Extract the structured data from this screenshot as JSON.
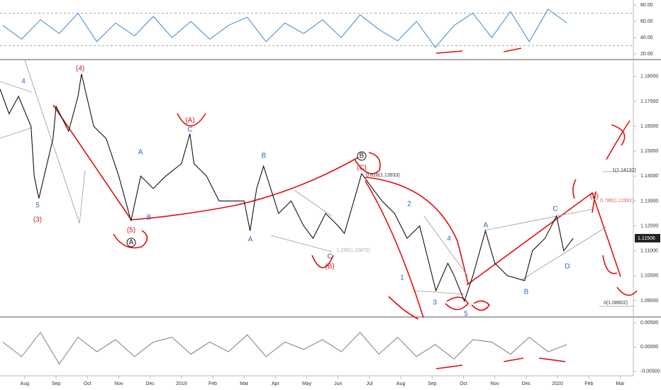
{
  "chart_data": [
    {
      "type": "line",
      "name": "RSI",
      "color": "#4a8fd6",
      "x": [
        -0.7,
        -0.1,
        0.5,
        1.1,
        1.7,
        2.3,
        2.9,
        3.5,
        4.1,
        4.7,
        5.3,
        5.9,
        6.5,
        7.1,
        7.7,
        8.3,
        8.9,
        9.5,
        10.1,
        10.7,
        11.3,
        11.9,
        12.5,
        13.1,
        13.7,
        14.3,
        14.9,
        15.5,
        16.1,
        16.7,
        17.3
      ],
      "values": [
        55,
        38,
        62,
        45,
        70,
        35,
        58,
        42,
        66,
        40,
        60,
        38,
        55,
        65,
        35,
        58,
        45,
        62,
        40,
        68,
        50,
        36,
        60,
        28,
        55,
        70,
        40,
        72,
        35,
        75,
        58
      ],
      "xlim": [
        -0.79,
        19.42
      ],
      "ylim": [
        13.9,
        86.2
      ],
      "yticks": [
        {
          "value": 80,
          "label": "80.00"
        },
        {
          "value": 60,
          "label": "60.00"
        },
        {
          "value": 40,
          "label": "40.00"
        },
        {
          "value": 20,
          "label": "20.00"
        }
      ],
      "levels": [
        70,
        30
      ]
    },
    {
      "type": "line",
      "name": "EURUSD",
      "color": "#111111",
      "x": [
        -0.79,
        -0.5,
        -0.2,
        0.2,
        0.3,
        0.45,
        0.9,
        1.0,
        1.4,
        1.7,
        1.81,
        2.2,
        2.6,
        3.0,
        3.39,
        3.7,
        4.1,
        4.5,
        5.0,
        5.27,
        5.4,
        5.8,
        6.2,
        6.6,
        7.0,
        7.19,
        7.4,
        7.62,
        8.1,
        8.5,
        8.9,
        9.2,
        9.6,
        10.0,
        10.2,
        10.5,
        10.75,
        11.1,
        11.4,
        11.8,
        12.2,
        12.6,
        13.12,
        13.5,
        13.7,
        14.03,
        14.3,
        14.7,
        15.0,
        15.4,
        15.95,
        16.2,
        16.6,
        16.97,
        17.2,
        17.5
      ],
      "values": [
        1.175,
        1.165,
        1.172,
        1.16,
        1.14,
        1.131,
        1.155,
        1.168,
        1.158,
        1.172,
        1.181,
        1.16,
        1.155,
        1.14,
        1.122,
        1.14,
        1.135,
        1.14,
        1.145,
        1.157,
        1.145,
        1.14,
        1.13,
        1.13,
        1.13,
        1.118,
        1.135,
        1.144,
        1.125,
        1.13,
        1.12,
        1.115,
        1.125,
        1.12,
        1.117,
        1.13,
        1.141,
        1.135,
        1.13,
        1.125,
        1.115,
        1.12,
        1.094,
        1.105,
        1.1,
        1.0898,
        1.1,
        1.118,
        1.105,
        1.1,
        1.098,
        1.11,
        1.115,
        1.124,
        1.11,
        1.115
      ],
      "xlim": [
        -0.79,
        19.42
      ],
      "ylim": [
        1.084,
        1.1865
      ],
      "yticks": [
        {
          "value": 1.18,
          "label": "1.18000"
        },
        {
          "value": 1.17,
          "label": "1.17000"
        },
        {
          "value": 1.16,
          "label": "1.16000"
        },
        {
          "value": 1.15,
          "label": "1.15000"
        },
        {
          "value": 1.14,
          "label": "1.14000"
        },
        {
          "value": 1.13,
          "label": "1.13000"
        },
        {
          "value": 1.12,
          "label": "1.12000"
        },
        {
          "value": 1.11,
          "label": "1.11000"
        },
        {
          "value": 1.1,
          "label": "1.10000"
        },
        {
          "value": 1.09,
          "label": "1.09000"
        }
      ],
      "last_price": 1.11506,
      "annotations": [
        {
          "text": "4",
          "color": "#2a66c8"
        },
        {
          "text": "5",
          "color": "#2a66c8"
        },
        {
          "text": "(3)",
          "color": "#c62020"
        },
        {
          "text": "(4)",
          "color": "#c62020"
        },
        {
          "text": "(5)",
          "color": "#c62020"
        },
        {
          "text": "A",
          "color": "#111111"
        },
        {
          "text": "A",
          "color": "#2a66c8"
        },
        {
          "text": "B",
          "color": "#2a66c8"
        },
        {
          "text": "(A)",
          "color": "#c62020"
        },
        {
          "text": "C",
          "color": "#2a66c8"
        },
        {
          "text": "B",
          "color": "#2a66c8"
        },
        {
          "text": "A",
          "color": "#2a66c8"
        },
        {
          "text": "C",
          "color": "#2a66c8"
        },
        {
          "text": "(B)",
          "color": "#c62020"
        },
        {
          "text": "B",
          "color": "#111111"
        },
        {
          "text": "(C)",
          "color": "#c62020"
        },
        {
          "text": "0.618(1.13933)",
          "color": "#333333"
        },
        {
          "text": "1.236(1.10870)",
          "color": "#aaaaaa"
        },
        {
          "text": "2",
          "color": "#2a66c8"
        },
        {
          "text": "4",
          "color": "#2a66c8"
        },
        {
          "text": "1",
          "color": "#2a66c8"
        },
        {
          "text": "3",
          "color": "#2a66c8"
        },
        {
          "text": "5",
          "color": "#2a66c8"
        },
        {
          "text": "A",
          "color": "#2a66c8"
        },
        {
          "text": "B",
          "color": "#2a66c8"
        },
        {
          "text": "C",
          "color": "#2a66c8"
        },
        {
          "text": "D",
          "color": "#2a66c8"
        },
        {
          "text": "(2)",
          "color": "#c62020"
        },
        {
          "text": "0.786(1.12991)",
          "color": "#e06060"
        },
        {
          "text": "1(1.14132)",
          "color": "#333333"
        },
        {
          "text": "0(1.08802)",
          "color": "#333333"
        }
      ]
    },
    {
      "type": "line",
      "name": "MACD",
      "color": "#888888",
      "x": [
        -0.7,
        -0.1,
        0.5,
        1.1,
        1.7,
        2.3,
        2.9,
        3.5,
        4.1,
        4.7,
        5.3,
        5.9,
        6.5,
        7.1,
        7.7,
        8.3,
        8.9,
        9.5,
        10.1,
        10.7,
        11.3,
        11.9,
        12.5,
        13.1,
        13.7,
        14.3,
        14.9,
        15.5,
        16.1,
        16.7,
        17.3
      ],
      "values": [
        0.001,
        -0.002,
        0.003,
        -0.0035,
        0.002,
        -0.001,
        0.0015,
        -0.002,
        0.001,
        0.002,
        -0.0015,
        0.001,
        -0.001,
        0.0025,
        -0.002,
        0.001,
        -0.0005,
        0.0015,
        -0.001,
        0.003,
        -0.0015,
        0.002,
        -0.002,
        0.0005,
        -0.0025,
        0.0015,
        0.001,
        -0.0015,
        0.002,
        -0.001,
        0.0005
      ],
      "xlim": [
        -0.79,
        19.42
      ],
      "ylim": [
        -0.00567,
        0.00575
      ],
      "yticks": [
        {
          "value": 0.005,
          "label": "0.00500"
        },
        {
          "value": 0,
          "label": "0.00000"
        },
        {
          "value": -0.005,
          "label": "-0.00500"
        }
      ],
      "xticks": [
        {
          "value": 0,
          "label": "Aug"
        },
        {
          "value": 1,
          "label": "Sep"
        },
        {
          "value": 2,
          "label": "Oct"
        },
        {
          "value": 3,
          "label": "Nov"
        },
        {
          "value": 4,
          "label": "Dec"
        },
        {
          "value": 5,
          "label": "2019"
        },
        {
          "value": 6,
          "label": "Feb"
        },
        {
          "value": 7,
          "label": "Mar"
        },
        {
          "value": 8,
          "label": "Apr"
        },
        {
          "value": 9,
          "label": "May"
        },
        {
          "value": 10,
          "label": "Jun"
        },
        {
          "value": 11,
          "label": "Jul"
        },
        {
          "value": 12,
          "label": "Aug"
        },
        {
          "value": 13,
          "label": "Sep"
        },
        {
          "value": 14,
          "label": "Oct"
        },
        {
          "value": 15,
          "label": "Nov"
        },
        {
          "value": 16,
          "label": "Dec"
        },
        {
          "value": 17,
          "label": "2020"
        },
        {
          "value": 18,
          "label": "Feb"
        },
        {
          "value": 19,
          "label": "Mar"
        }
      ]
    }
  ]
}
